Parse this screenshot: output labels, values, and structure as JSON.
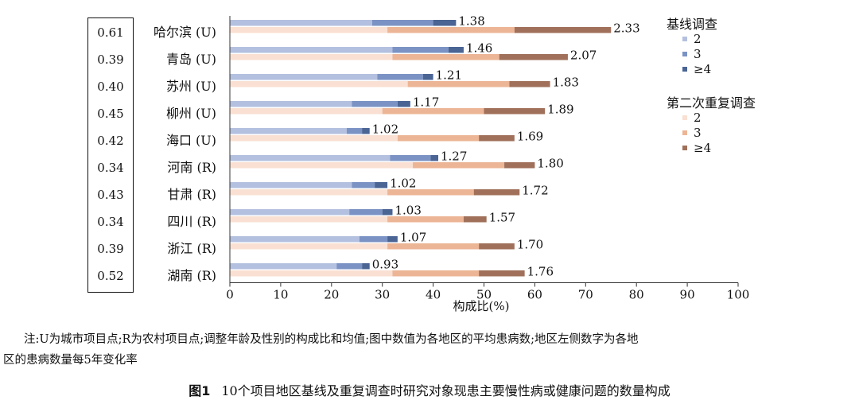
{
  "chart_data": {
    "type": "bar",
    "orientation": "horizontal",
    "stacked": true,
    "categories": [
      "哈尔滨 (U)",
      "青岛 (U)",
      "苏州 (U)",
      "柳州 (U)",
      "海口 (U)",
      "河南 (R)",
      "甘肃 (R)",
      "四川 (R)",
      "浙江 (R)",
      "湖南 (R)"
    ],
    "change_rates": [
      "0.61",
      "0.39",
      "0.40",
      "0.45",
      "0.42",
      "0.34",
      "0.43",
      "0.34",
      "0.39",
      "0.52"
    ],
    "groups": [
      {
        "name": "基线调查",
        "series": [
          {
            "name": "2",
            "color": "#b4c0df",
            "values": [
              28,
              32,
              29,
              24,
              23,
              31.5,
              24,
              23.5,
              25.5,
              21
            ]
          },
          {
            "name": "3",
            "color": "#7b93c4",
            "values": [
              12,
              11,
              9,
              9,
              3,
              8,
              4.5,
              6.5,
              5.5,
              5
            ]
          },
          {
            "name": "≥4",
            "color": "#4a6494",
            "values": [
              4.5,
              3,
              2,
              2.5,
              1.5,
              1.5,
              2.5,
              2,
              2,
              1.5
            ]
          }
        ],
        "averages": [
          "1.38",
          "1.46",
          "1.21",
          "1.17",
          "1.02",
          "1.27",
          "1.02",
          "1.03",
          "1.07",
          "0.93"
        ]
      },
      {
        "name": "第二次重复调查",
        "series": [
          {
            "name": "2",
            "color": "#f9e0d2",
            "values": [
              31,
              32,
              35,
              30,
              33,
              36,
              31,
              31,
              31,
              32
            ]
          },
          {
            "name": "3",
            "color": "#ecb595",
            "values": [
              25,
              21,
              20,
              20,
              16,
              18,
              17,
              15,
              18,
              17
            ]
          },
          {
            "name": "≥4",
            "color": "#a0705a",
            "values": [
              19,
              13.5,
              8,
              12,
              7,
              6,
              9,
              4.5,
              7,
              9
            ]
          }
        ],
        "averages": [
          "2.33",
          "2.07",
          "1.83",
          "1.89",
          "1.69",
          "1.80",
          "1.72",
          "1.57",
          "1.70",
          "1.76"
        ]
      }
    ],
    "xlabel": "构成比(%)",
    "xlim": [
      0,
      100
    ],
    "xticks": [
      0,
      10,
      20,
      30,
      40,
      50,
      60,
      70,
      80,
      90,
      100
    ],
    "grid": false,
    "legend_placement": "right"
  },
  "note": {
    "line1": "注:U为城市项目点;R为农村项目点;调整年龄及性别的构成比和均值;图中数值为各地区的平均患病数;地区左侧数字为各地",
    "line2": "区的患病数量每5年变化率"
  },
  "caption": {
    "label": "图1",
    "text": "10个项目地区基线及重复调查时研究对象现患主要慢性病或健康问题的数量构成"
  }
}
